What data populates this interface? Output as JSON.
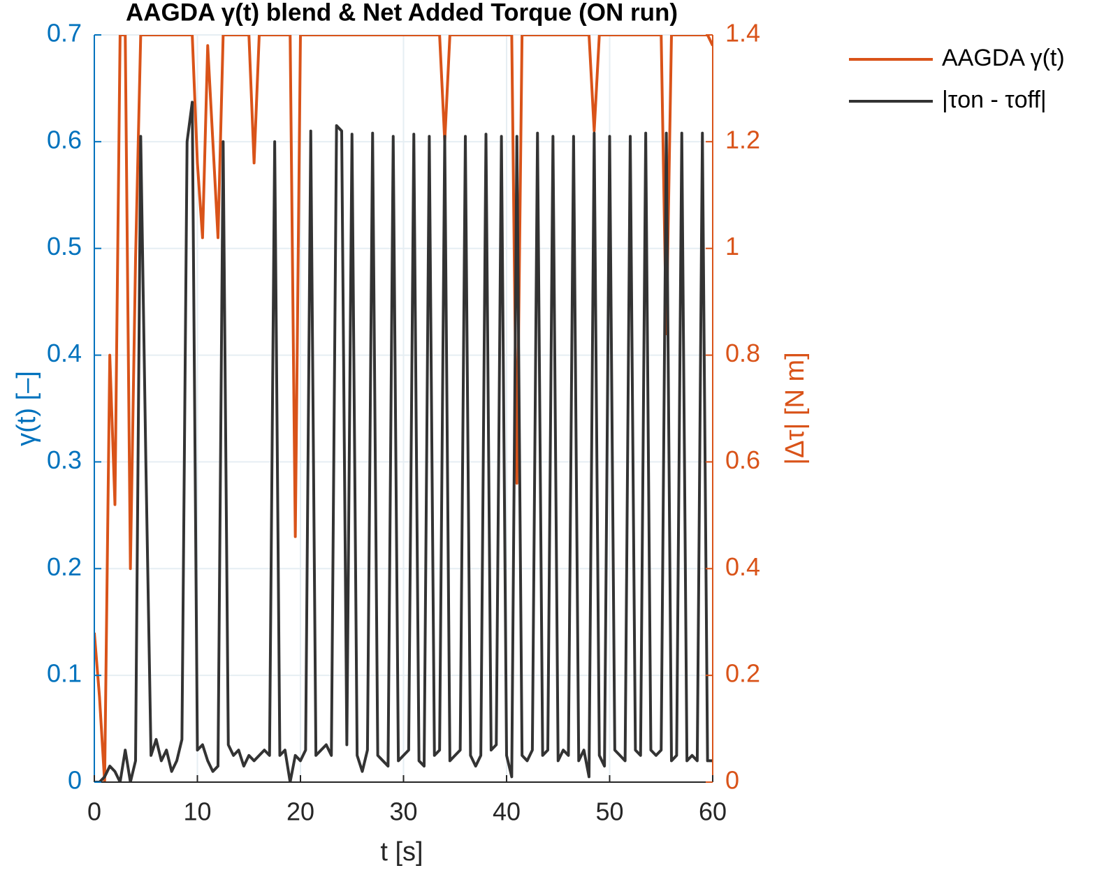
{
  "chart_data": {
    "type": "line",
    "title": "AAGDA γ(t) blend & Net Added Torque (ON run)",
    "xlabel": "t [s]",
    "ylabel": "γ(t) [–]",
    "y2label": "|Δτ| [N m]",
    "xlim": [
      0,
      60
    ],
    "xticks": [
      0,
      10,
      20,
      30,
      40,
      50,
      60
    ],
    "ylim": [
      0,
      0.7
    ],
    "yticks": [
      0,
      0.1,
      0.2,
      0.3,
      0.4,
      0.5,
      0.6,
      0.7
    ],
    "y2lim": [
      0,
      1.4
    ],
    "y2ticks": [
      0,
      0.2,
      0.4,
      0.6,
      0.8,
      1,
      1.2,
      1.4
    ],
    "grid": true,
    "legend": "outside-right",
    "x": [
      0,
      0.5,
      1,
      1.5,
      2,
      2.5,
      3,
      3.5,
      4,
      4.5,
      5,
      5.5,
      6,
      6.5,
      7,
      7.5,
      8,
      8.5,
      9,
      9.5,
      10,
      10.5,
      11,
      11.5,
      12,
      12.5,
      13,
      13.5,
      14,
      14.5,
      15,
      15.5,
      16,
      16.5,
      17,
      17.5,
      18,
      18.5,
      19,
      19.5,
      20,
      20.5,
      21,
      21.5,
      22,
      22.5,
      23,
      23.5,
      24,
      24.5,
      25,
      25.5,
      26,
      26.5,
      27,
      27.5,
      28,
      28.5,
      29,
      29.5,
      30,
      30.5,
      31,
      31.5,
      32,
      32.5,
      33,
      33.5,
      34,
      34.5,
      35,
      35.5,
      36,
      36.5,
      37,
      37.5,
      38,
      38.5,
      39,
      39.5,
      40,
      40.5,
      41,
      41.5,
      42,
      42.5,
      43,
      43.5,
      44,
      44.5,
      45,
      45.5,
      46,
      46.5,
      47,
      47.5,
      48,
      48.5,
      49,
      49.5,
      50,
      50.5,
      51,
      51.5,
      52,
      52.5,
      53,
      53.5,
      54,
      54.5,
      55,
      55.5,
      56,
      56.5,
      57,
      57.5,
      58,
      58.5,
      59,
      59.5,
      60
    ],
    "series": [
      {
        "name": "AAGDA γ(t)",
        "color": "#D95319",
        "axis": "y",
        "values": [
          0.14,
          0.08,
          0,
          0.4,
          0.26,
          0.7,
          0.7,
          0.2,
          0.49,
          0.7,
          0.7,
          0.7,
          0.7,
          0.7,
          0.7,
          0.7,
          0.7,
          0.7,
          0.7,
          0.7,
          0.58,
          0.51,
          0.69,
          0.6,
          0.51,
          0.7,
          0.7,
          0.7,
          0.7,
          0.7,
          0.7,
          0.58,
          0.7,
          0.7,
          0.7,
          0.7,
          0.7,
          0.7,
          0.7,
          0.23,
          0.7,
          0.7,
          0.7,
          0.7,
          0.7,
          0.7,
          0.7,
          0.7,
          0.7,
          0.7,
          0.7,
          0.7,
          0.7,
          0.7,
          0.7,
          0.7,
          0.7,
          0.7,
          0.7,
          0.7,
          0.7,
          0.7,
          0.7,
          0.7,
          0.7,
          0.7,
          0.7,
          0.7,
          0.6,
          0.7,
          0.7,
          0.7,
          0.7,
          0.7,
          0.7,
          0.7,
          0.7,
          0.7,
          0.7,
          0.7,
          0.7,
          0.7,
          0.28,
          0.7,
          0.7,
          0.7,
          0.7,
          0.7,
          0.7,
          0.7,
          0.7,
          0.7,
          0.7,
          0.7,
          0.7,
          0.7,
          0.7,
          0.61,
          0.7,
          0.7,
          0.7,
          0.7,
          0.7,
          0.7,
          0.7,
          0.7,
          0.7,
          0.7,
          0.7,
          0.7,
          0.7,
          0.42,
          0.7,
          0.7,
          0.7,
          0.7,
          0.7,
          0.7,
          0.7,
          0.7,
          0.69
        ]
      },
      {
        "name": "|τon - τoff|",
        "color": "#333333",
        "axis": "y2",
        "values": [
          0,
          0,
          0.01,
          0.03,
          0.02,
          0,
          0.06,
          0,
          0.04,
          1.21,
          0.6,
          0.05,
          0.08,
          0.04,
          0.06,
          0.02,
          0.04,
          0.08,
          1.2,
          1.274,
          0.06,
          0.07,
          0.04,
          0.02,
          0.03,
          1.2,
          0.07,
          0.05,
          0.06,
          0.03,
          0.05,
          0.04,
          0.05,
          0.06,
          0.05,
          1.2,
          0.05,
          0.06,
          0,
          0.05,
          0.04,
          0.06,
          1.22,
          0.05,
          0.06,
          0.07,
          0.05,
          1.23,
          1.22,
          0.07,
          1.214,
          0.05,
          0.02,
          0.06,
          1.216,
          0.05,
          0.04,
          0.03,
          1.21,
          0.04,
          0.05,
          0.06,
          1.214,
          0.04,
          0.03,
          1.21,
          0.05,
          0.06,
          1.21,
          0.04,
          0.05,
          0.06,
          1.21,
          0.05,
          0.03,
          0.05,
          1.214,
          0.06,
          0.07,
          1.21,
          0.05,
          0.01,
          1.21,
          0.05,
          0.04,
          0.06,
          1.216,
          0.05,
          0.06,
          1.21,
          0.04,
          0.06,
          0.05,
          1.21,
          0.04,
          0.06,
          0.01,
          1.216,
          0.05,
          0.03,
          1.21,
          0.06,
          0.05,
          0.04,
          1.21,
          0.06,
          0.05,
          1.216,
          0.06,
          0.05,
          0.06,
          1.216,
          0.04,
          0.05,
          1.216,
          0.04,
          0.05,
          0.04,
          1.216,
          0.04,
          0.04
        ]
      }
    ]
  }
}
